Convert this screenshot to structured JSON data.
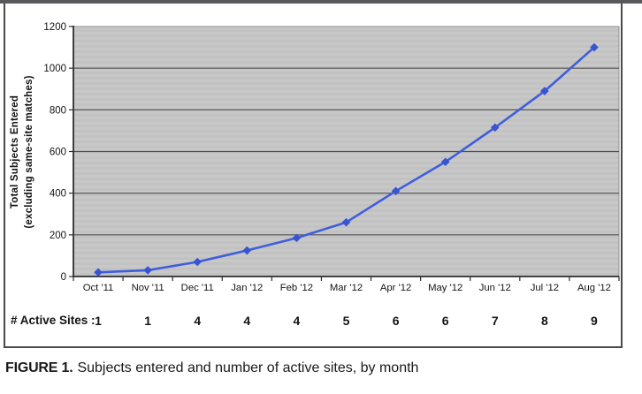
{
  "figure": {
    "caption_label": "FIGURE 1.",
    "caption_text": "Subjects entered and number of active sites, by month"
  },
  "chart_data": {
    "type": "line",
    "categories": [
      "Oct '11",
      "Nov '11",
      "Dec '11",
      "Jan '12",
      "Feb '12",
      "Mar '12",
      "Apr '12",
      "May '12",
      "Jun '12",
      "Jul '12",
      "Aug '12"
    ],
    "values": [
      20,
      30,
      70,
      125,
      185,
      260,
      410,
      550,
      715,
      890,
      1100
    ],
    "ylabel_line1": "Total Subjects Entered",
    "ylabel_line2": "(excluding same-site matches)",
    "ylim": [
      0,
      1200
    ],
    "yticks": [
      0,
      200,
      400,
      600,
      800,
      1000,
      1200
    ],
    "grid": "horizontal",
    "legend": "none",
    "marker": "diamond",
    "active_sites_label": "# Active Sites :",
    "active_sites": [
      1,
      1,
      4,
      4,
      4,
      5,
      6,
      6,
      7,
      8,
      9
    ],
    "colors": {
      "line": "#3E5EDC",
      "marker": "#3754D2",
      "plot_bg": "#c2c2c2",
      "plot_bg_light": "#c8c8c8",
      "plot_border": "#8f8f8f",
      "gridline": "#4f4f4f",
      "axis": "#2d2d2d",
      "text": "#141414"
    }
  }
}
